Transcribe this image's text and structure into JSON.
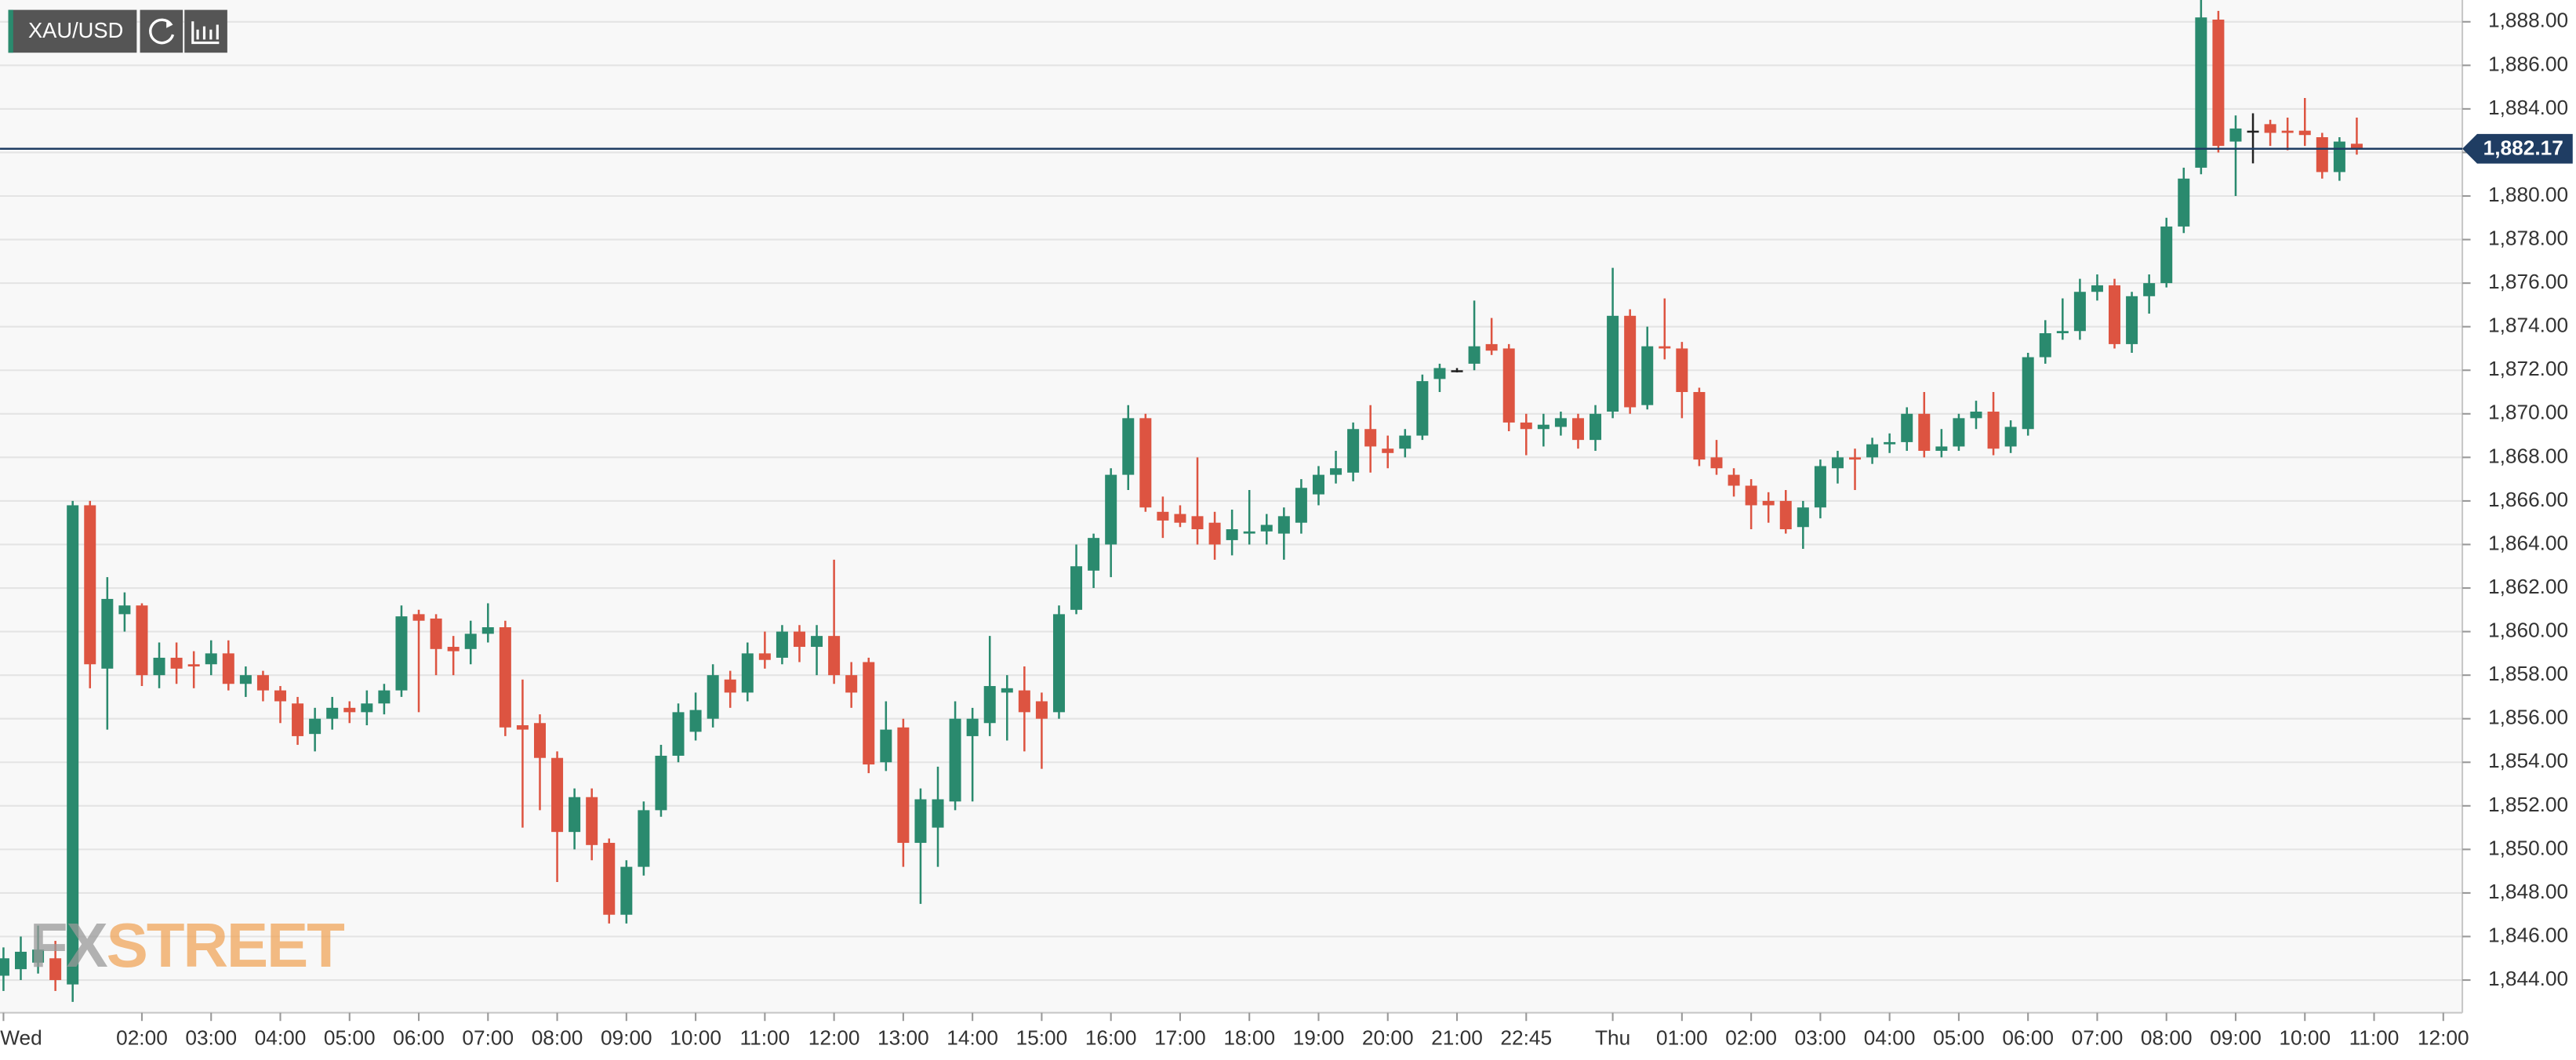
{
  "chart_data": {
    "type": "candlestick",
    "symbol": "XAU/USD",
    "watermark": {
      "left": "FX",
      "right": "STREET"
    },
    "up_color": "#2a8a6e",
    "down_color": "#dd5441",
    "doji_color": "#222222",
    "x": [
      0,
      1,
      2,
      3,
      4,
      5,
      6,
      7,
      8,
      9,
      10,
      11,
      12,
      13,
      14,
      15,
      16,
      17,
      18,
      19,
      20,
      21,
      22,
      23,
      24,
      25,
      26,
      27,
      28,
      29,
      30,
      31,
      32,
      33,
      34,
      35,
      36,
      37,
      38,
      39,
      40,
      41,
      42,
      43,
      44,
      45,
      46,
      47,
      48,
      49,
      50,
      51,
      52,
      53,
      54,
      55,
      56,
      57,
      58,
      59,
      60,
      61,
      62,
      63,
      64,
      65,
      66,
      67,
      68,
      69,
      70,
      71,
      72,
      73,
      74,
      75,
      76,
      77,
      78,
      79,
      80,
      81,
      82,
      83,
      84,
      85,
      86,
      87,
      88,
      89,
      90,
      91,
      92,
      93,
      94,
      95,
      96,
      97,
      98,
      99,
      100,
      101,
      102,
      103,
      104,
      105,
      106,
      107,
      108,
      109,
      110,
      111,
      112,
      113,
      114,
      115,
      116,
      117,
      118,
      119,
      120,
      121,
      122,
      123,
      124,
      125,
      126,
      127,
      128,
      129,
      130,
      131,
      132,
      133,
      134,
      135,
      136
    ],
    "open": [
      1844.2,
      1844.5,
      1844.8,
      1845,
      1843.8,
      1865.8,
      1858.3,
      1860.8,
      1861.2,
      1858,
      1858.8,
      1858.5,
      1858.5,
      1859,
      1857.6,
      1858,
      1857.3,
      1856.7,
      1855.3,
      1856,
      1856.5,
      1856.3,
      1856.7,
      1857.3,
      1860.8,
      1860.6,
      1859.3,
      1859.2,
      1859.9,
      1860.2,
      1855.7,
      1855.8,
      1854.2,
      1850.8,
      1852.4,
      1850.3,
      1847,
      1849.2,
      1851.8,
      1854.3,
      1855.4,
      1856,
      1857.8,
      1857.2,
      1859,
      1858.8,
      1860,
      1859.3,
      1859.8,
      1858,
      1858.6,
      1854,
      1855.6,
      1850.3,
      1851,
      1852.2,
      1855.2,
      1855.8,
      1857.2,
      1857.3,
      1856.8,
      1856.3,
      1861,
      1862.8,
      1864,
      1867.2,
      1869.8,
      1865.5,
      1865.4,
      1865.3,
      1865,
      1864.2,
      1864.5,
      1864.6,
      1864.5,
      1865,
      1866.3,
      1867.2,
      1867.3,
      1869.3,
      1868.4,
      1868.4,
      1869,
      1871.6,
      1872,
      1872.3,
      1873.2,
      1873,
      1869.6,
      1869.3,
      1869.4,
      1869.8,
      1868.8,
      1870.1,
      1874.5,
      1870.4,
      1873.1,
      1873,
      1871,
      1868,
      1867.2,
      1866.7,
      1866,
      1866,
      1864.8,
      1865.7,
      1867.5,
      1868,
      1868,
      1868.6,
      1868.7,
      1870,
      1868.3,
      1868.5,
      1869.8,
      1870.1,
      1868.5,
      1869.3,
      1872.6,
      1873.7,
      1873.8,
      1875.6,
      1875.9,
      1873.2,
      1875.4,
      1876,
      1878.6,
      1881.3,
      1888.1,
      1882.5,
      1883,
      1883.3,
      1883,
      1883,
      1882.7,
      1881.1,
      1882.4
    ],
    "high": [
      1845.5,
      1846,
      1846.5,
      1845.8,
      1866,
      1866,
      1862.5,
      1861.8,
      1861.3,
      1859.5,
      1859.5,
      1859.1,
      1859.6,
      1859.6,
      1858.4,
      1858.2,
      1857.5,
      1857,
      1856.5,
      1857,
      1856.8,
      1857.3,
      1857.6,
      1861.2,
      1861,
      1860.8,
      1859.8,
      1860.5,
      1861.3,
      1860.5,
      1857.8,
      1856.2,
      1854.5,
      1852.8,
      1852.8,
      1850.5,
      1849.5,
      1852.2,
      1854.8,
      1856.7,
      1857.2,
      1858.5,
      1858.2,
      1859.5,
      1860,
      1860.3,
      1860.3,
      1860.3,
      1863.3,
      1858.6,
      1858.8,
      1856.8,
      1856,
      1852.8,
      1853.8,
      1856.8,
      1856.5,
      1859.8,
      1858,
      1858.4,
      1857.2,
      1861.2,
      1864,
      1864.5,
      1867.5,
      1870.4,
      1870,
      1866.2,
      1865.8,
      1868,
      1865.5,
      1865.6,
      1866.5,
      1865.4,
      1865.7,
      1867,
      1867.6,
      1868.3,
      1869.6,
      1870.4,
      1869,
      1869.3,
      1871.8,
      1872.3,
      1872.1,
      1875.2,
      1874.4,
      1873.2,
      1870,
      1870,
      1870.1,
      1870,
      1870.4,
      1876.7,
      1874.8,
      1874,
      1875.3,
      1873.3,
      1871.2,
      1868.8,
      1867.5,
      1867,
      1866.4,
      1866.5,
      1866,
      1867.9,
      1868.3,
      1868.4,
      1868.9,
      1869.1,
      1870.3,
      1871,
      1869.3,
      1870,
      1870.6,
      1871,
      1869.7,
      1872.8,
      1874.3,
      1875.3,
      1876.2,
      1876.4,
      1876.2,
      1875.6,
      1876.4,
      1879,
      1881.3,
      1889,
      1888.5,
      1883.7,
      1883.8,
      1883.5,
      1883.6,
      1884.5,
      1882.9,
      1882.7,
      1883.6
    ],
    "low": [
      1843.5,
      1844,
      1844.3,
      1843.5,
      1843,
      1857.4,
      1855.5,
      1860,
      1857.5,
      1857.4,
      1857.6,
      1857.4,
      1858,
      1857.3,
      1857,
      1856.8,
      1855.8,
      1854.8,
      1854.5,
      1855.5,
      1855.8,
      1855.7,
      1856.2,
      1857,
      1856.3,
      1858,
      1858,
      1858.5,
      1859.5,
      1855.2,
      1851,
      1851.8,
      1848.5,
      1850,
      1849.5,
      1846.6,
      1846.6,
      1848.8,
      1851.5,
      1854,
      1855,
      1855.6,
      1856.5,
      1856.8,
      1858.3,
      1858.5,
      1858.6,
      1858,
      1857.6,
      1856.5,
      1853.5,
      1853.6,
      1849.2,
      1847.5,
      1849.2,
      1851.8,
      1852.2,
      1855.2,
      1855,
      1854.5,
      1853.7,
      1856,
      1860.8,
      1862,
      1862.5,
      1866.5,
      1865.5,
      1864.3,
      1864.8,
      1864,
      1863.3,
      1863.5,
      1864,
      1864,
      1863.3,
      1864.5,
      1865.8,
      1866.8,
      1866.9,
      1867.3,
      1867.5,
      1868,
      1868.8,
      1871,
      1871.9,
      1872,
      1872.7,
      1869.2,
      1868.1,
      1868.5,
      1869,
      1868.4,
      1868.3,
      1869.8,
      1870,
      1870.2,
      1872.5,
      1869.8,
      1867.6,
      1867.2,
      1866.2,
      1864.7,
      1865,
      1864.5,
      1863.8,
      1865.2,
      1866.8,
      1866.5,
      1867.7,
      1868.2,
      1868.3,
      1868,
      1868,
      1868.3,
      1869.3,
      1868.1,
      1868.2,
      1869,
      1872.3,
      1873.4,
      1873.4,
      1875.2,
      1873,
      1872.8,
      1874.6,
      1875.8,
      1878.3,
      1881,
      1882,
      1880,
      1881.5,
      1882.3,
      1882.1,
      1882.3,
      1880.8,
      1880.7,
      1881.9
    ],
    "close": [
      1845,
      1845.3,
      1845.4,
      1844,
      1865.8,
      1858.5,
      1861.5,
      1861.2,
      1858,
      1858.8,
      1858.3,
      1858.4,
      1859,
      1857.6,
      1858,
      1857.3,
      1856.8,
      1855.2,
      1856,
      1856.5,
      1856.3,
      1856.7,
      1857.3,
      1860.7,
      1860.5,
      1859.2,
      1859.1,
      1859.9,
      1860.2,
      1855.6,
      1855.5,
      1854.2,
      1850.8,
      1852.4,
      1850.2,
      1847,
      1849.2,
      1851.8,
      1854.3,
      1856.3,
      1856.4,
      1858,
      1857.2,
      1859,
      1858.7,
      1860,
      1859.3,
      1859.8,
      1858,
      1857.2,
      1853.9,
      1855.5,
      1850.3,
      1852.3,
      1852.3,
      1856,
      1856,
      1857.5,
      1857.4,
      1856.3,
      1856,
      1860.8,
      1863,
      1864.3,
      1867.2,
      1869.8,
      1865.7,
      1865.1,
      1865,
      1864.7,
      1864,
      1864.7,
      1864.6,
      1864.9,
      1865.3,
      1866.6,
      1867.2,
      1867.5,
      1869.3,
      1868.5,
      1868.2,
      1869,
      1871.5,
      1872.1,
      1872,
      1873.1,
      1872.9,
      1869.6,
      1869.3,
      1869.5,
      1869.8,
      1868.8,
      1870,
      1874.5,
      1870.3,
      1873.1,
      1873,
      1871,
      1867.9,
      1867.5,
      1866.7,
      1865.8,
      1865.8,
      1864.7,
      1865.7,
      1867.6,
      1868,
      1867.9,
      1868.6,
      1868.7,
      1870,
      1868.3,
      1868.5,
      1869.8,
      1870.1,
      1868.4,
      1869.4,
      1872.6,
      1873.7,
      1873.8,
      1875.6,
      1875.9,
      1873.2,
      1875.4,
      1876,
      1878.6,
      1880.8,
      1888.2,
      1882.3,
      1883.1,
      1883,
      1882.9,
      1882.9,
      1882.8,
      1881.1,
      1882.5,
      1882.17
    ],
    "last_price": {
      "value": 1882.17,
      "label": "1,882.17"
    },
    "last_price_color": "#1f3d63",
    "xlim": [
      -0.2,
      142.1
    ],
    "ylim": [
      1842.5,
      1889.0
    ],
    "grid": true,
    "xticks": [
      {
        "value": 0,
        "label": "Wed"
      },
      {
        "value": 8,
        "label": "02:00"
      },
      {
        "value": 12,
        "label": "03:00"
      },
      {
        "value": 16,
        "label": "04:00"
      },
      {
        "value": 20,
        "label": "05:00"
      },
      {
        "value": 24,
        "label": "06:00"
      },
      {
        "value": 28,
        "label": "07:00"
      },
      {
        "value": 32,
        "label": "08:00"
      },
      {
        "value": 36,
        "label": "09:00"
      },
      {
        "value": 40,
        "label": "10:00"
      },
      {
        "value": 44,
        "label": "11:00"
      },
      {
        "value": 48,
        "label": "12:00"
      },
      {
        "value": 52,
        "label": "13:00"
      },
      {
        "value": 56,
        "label": "14:00"
      },
      {
        "value": 60,
        "label": "15:00"
      },
      {
        "value": 64,
        "label": "16:00"
      },
      {
        "value": 68,
        "label": "17:00"
      },
      {
        "value": 72,
        "label": "18:00"
      },
      {
        "value": 76,
        "label": "19:00"
      },
      {
        "value": 80,
        "label": "20:00"
      },
      {
        "value": 84,
        "label": "21:00"
      },
      {
        "value": 88,
        "label": "22:45"
      },
      {
        "value": 93,
        "label": "Thu"
      },
      {
        "value": 97,
        "label": "01:00"
      },
      {
        "value": 101,
        "label": "02:00"
      },
      {
        "value": 105,
        "label": "03:00"
      },
      {
        "value": 109,
        "label": "04:00"
      },
      {
        "value": 113,
        "label": "05:00"
      },
      {
        "value": 117,
        "label": "06:00"
      },
      {
        "value": 121,
        "label": "07:00"
      },
      {
        "value": 125,
        "label": "08:00"
      },
      {
        "value": 129,
        "label": "09:00"
      },
      {
        "value": 133,
        "label": "10:00"
      },
      {
        "value": 137,
        "label": "11:00"
      },
      {
        "value": 141,
        "label": "12:00"
      }
    ],
    "yticks": [
      {
        "value": 1844,
        "label": "1,844.00"
      },
      {
        "value": 1846,
        "label": "1,846.00"
      },
      {
        "value": 1848,
        "label": "1,848.00"
      },
      {
        "value": 1850,
        "label": "1,850.00"
      },
      {
        "value": 1852,
        "label": "1,852.00"
      },
      {
        "value": 1854,
        "label": "1,854.00"
      },
      {
        "value": 1856,
        "label": "1,856.00"
      },
      {
        "value": 1858,
        "label": "1,858.00"
      },
      {
        "value": 1860,
        "label": "1,860.00"
      },
      {
        "value": 1862,
        "label": "1,862.00"
      },
      {
        "value": 1864,
        "label": "1,864.00"
      },
      {
        "value": 1866,
        "label": "1,866.00"
      },
      {
        "value": 1868,
        "label": "1,868.00"
      },
      {
        "value": 1870,
        "label": "1,870.00"
      },
      {
        "value": 1872,
        "label": "1,872.00"
      },
      {
        "value": 1874,
        "label": "1,874.00"
      },
      {
        "value": 1876,
        "label": "1,876.00"
      },
      {
        "value": 1878,
        "label": "1,878.00"
      },
      {
        "value": 1880,
        "label": "1,880.00"
      },
      {
        "value": 1882,
        "label": "1,882.00"
      },
      {
        "value": 1884,
        "label": "1,884.00"
      },
      {
        "value": 1886,
        "label": "1,886.00"
      },
      {
        "value": 1888,
        "label": "1,888.00"
      }
    ]
  }
}
